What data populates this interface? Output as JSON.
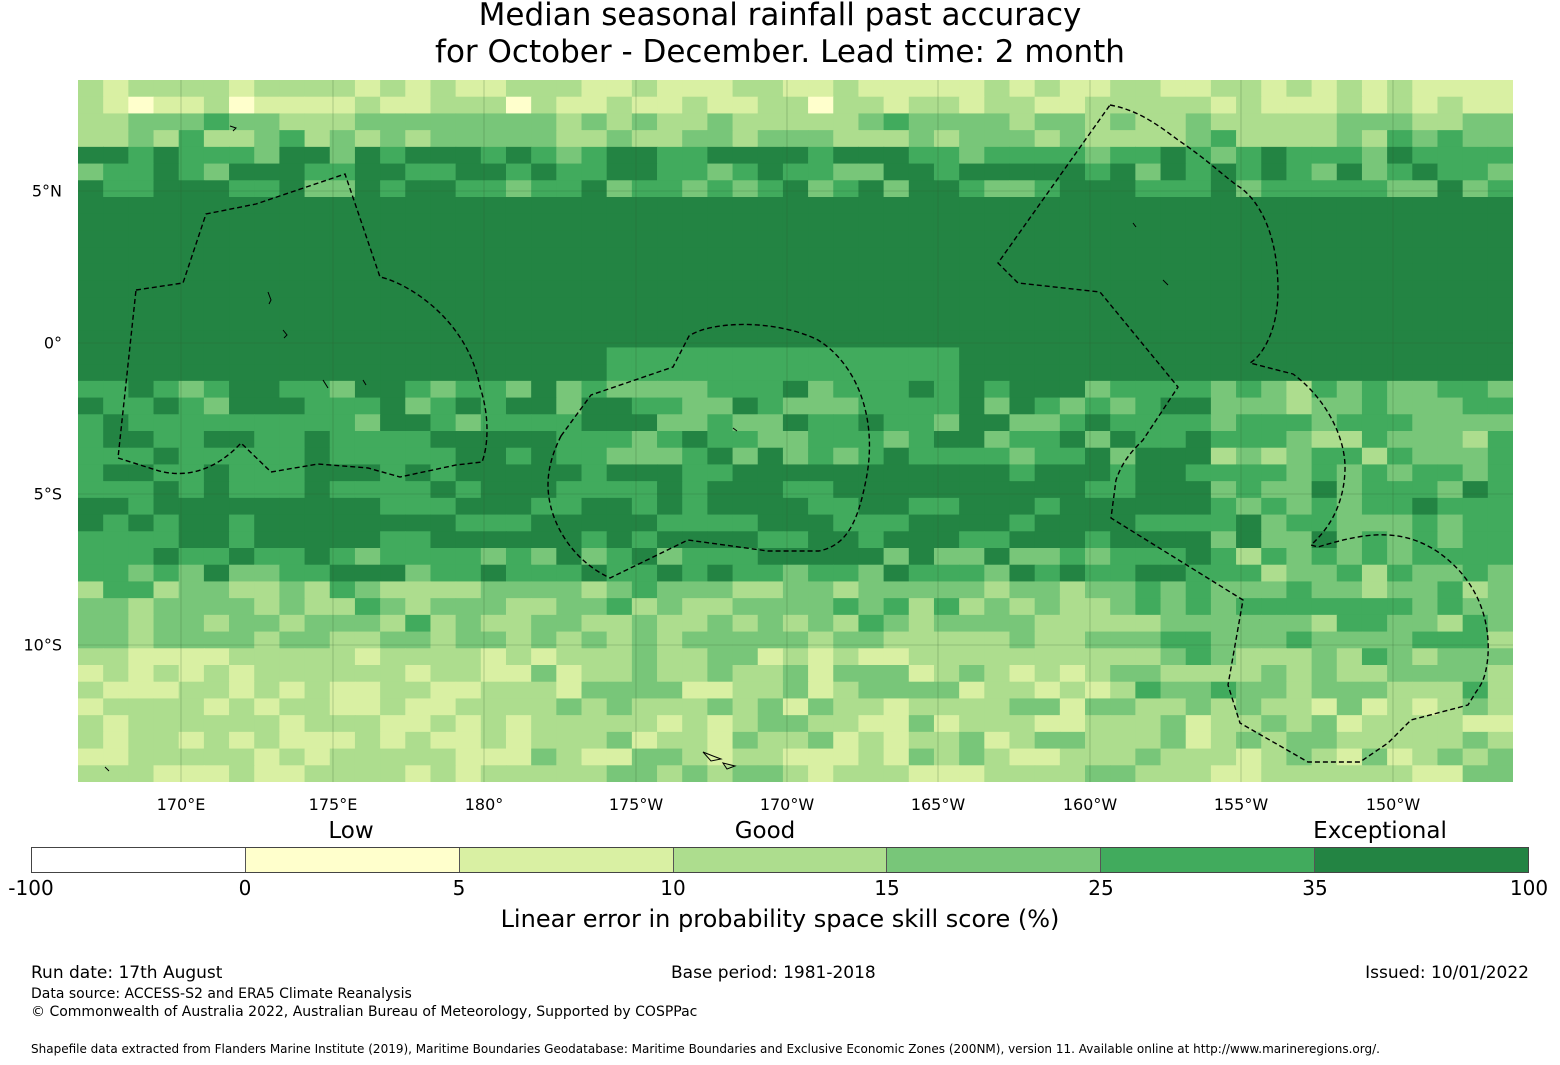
{
  "title": {
    "line1": "Median seasonal rainfall past accuracy",
    "line2": "for October - December. Lead time: 2 month"
  },
  "map": {
    "lon_labels": [
      "170°E",
      "175°E",
      "180°",
      "175°W",
      "170°W",
      "165°W",
      "160°W",
      "155°W",
      "150°W"
    ],
    "lat_labels": [
      "5°N",
      "0°",
      "5°S",
      "10°S"
    ],
    "colors": [
      "#ffffff",
      "#ffffcc",
      "#d9f0a3",
      "#addd8e",
      "#78c679",
      "#41ab5d",
      "#238443"
    ]
  },
  "legend": {
    "category_labels": [
      "Low",
      "Good",
      "Exceptional"
    ],
    "ticks": [
      "-100",
      "0",
      "5",
      "10",
      "15",
      "25",
      "35",
      "100"
    ],
    "title": "Linear error in probability space skill score (%)"
  },
  "footer": {
    "run_date": "Run date: 17th August",
    "base_period": "Base period: 1981-2018",
    "issued": "Issued: 10/01/2022",
    "data_source": "Data source: ACCESS-S2 and ERA5 Climate Reanalysis",
    "copyright": "© Commonwealth of Australia 2022, Australian Bureau of Meteorology, Supported by COSPPac",
    "shapefile": "Shapefile data extracted from Flanders Marine Institute (2019), Maritime Boundaries Geodatabase: Maritime Boundaries and Exclusive Economic Zones (200NM), version 11. Available online at http://www.marineregions.org/."
  }
}
